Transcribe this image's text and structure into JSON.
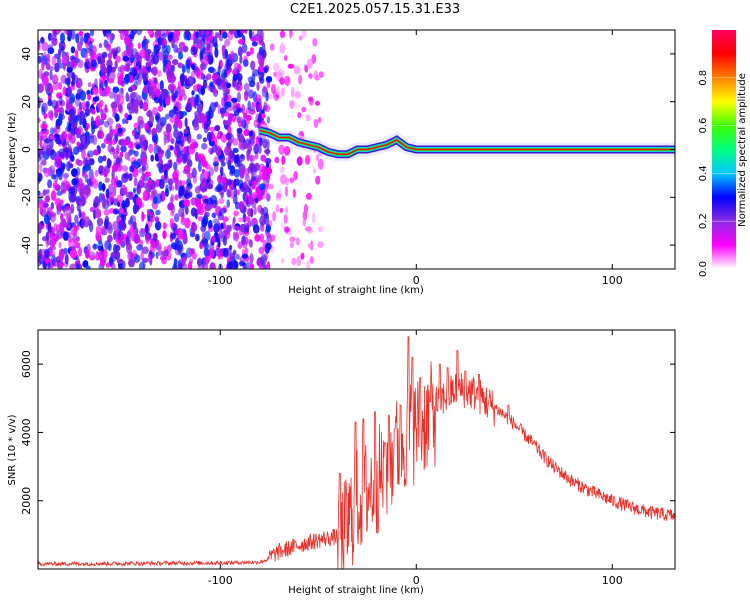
{
  "title": "C2E1.2025.057.15.31.E33",
  "charts": [
    {
      "type": "heatmap",
      "xlabel": "Height of straight line (km)",
      "ylabel": "Frequency (Hz)",
      "xlim": [
        -193,
        132
      ],
      "ylim": [
        -50,
        50
      ],
      "xticks": [
        "-100",
        "0",
        "100"
      ],
      "xtick_values": [
        -100,
        0,
        100
      ],
      "yticks": [
        "-40",
        "-20",
        "0",
        "20",
        "40"
      ],
      "ytick_values": [
        -40,
        -20,
        0,
        20,
        40
      ],
      "grid": false,
      "colorbar": {
        "label": "Normalized spectral amplitude",
        "ticks": [
          "0.0",
          "0.2",
          "0.4",
          "0.6",
          "0.8"
        ],
        "tick_values": [
          0,
          0.2,
          0.4,
          0.6,
          0.8
        ],
        "range": [
          0,
          1
        ],
        "stops": [
          "#ffffff",
          "#ff00ff",
          "#8a2be2",
          "#0000ff",
          "#00c8ff",
          "#00ff80",
          "#40ff00",
          "#ffff00",
          "#ff8000",
          "#ff0000",
          "#ff0060"
        ]
      },
      "noise_region_km": [
        -193,
        -48
      ],
      "ridge": {
        "x": [
          -80,
          -75,
          -70,
          -65,
          -60,
          -55,
          -50,
          -45,
          -40,
          -35,
          -30,
          -25,
          -20,
          -15,
          -10,
          -5,
          0,
          10,
          30,
          60,
          100,
          132
        ],
        "y": [
          8,
          7,
          5,
          5,
          3,
          2,
          1,
          -1,
          -2,
          -2,
          0,
          0,
          1,
          2,
          4,
          1,
          0,
          0,
          0,
          0,
          0,
          0
        ]
      }
    },
    {
      "type": "line",
      "xlabel": "Height of straight line (km)",
      "ylabel": "SNR (10 * v/v)",
      "xlim": [
        -193,
        132
      ],
      "ylim": [
        0,
        7000
      ],
      "xticks": [
        "-100",
        "0",
        "100"
      ],
      "xtick_values": [
        -100,
        0,
        100
      ],
      "yticks": [
        "2000",
        "4000",
        "6000"
      ],
      "ytick_values": [
        2000,
        4000,
        6000
      ],
      "grid": false,
      "series": [
        {
          "color": "#e8302a",
          "envelope": {
            "x": [
              -193,
              -150,
              -100,
              -80,
              -75,
              -70,
              -60,
              -50,
              -40,
              -35,
              -30,
              -25,
              -20,
              -15,
              -10,
              -5,
              0,
              5,
              10,
              15,
              20,
              25,
              30,
              35,
              40,
              45,
              50,
              55,
              60,
              65,
              70,
              80,
              90,
              100,
              110,
              120,
              132
            ],
            "y": [
              150,
              160,
              180,
              200,
              300,
              450,
              650,
              800,
              900,
              1600,
              2300,
              2600,
              2900,
              3300,
              3800,
              4200,
              4400,
              4700,
              4900,
              5100,
              5300,
              5300,
              5200,
              5000,
              4750,
              4500,
              4250,
              3950,
              3650,
              3300,
              3000,
              2550,
              2250,
              2000,
              1800,
              1650,
              1550
            ]
          },
          "spikes": {
            "x": [
              -39,
              -31,
              -27,
              -21,
              -16,
              -14,
              -11,
              -8,
              -4,
              -2,
              2,
              7,
              12,
              16,
              21,
              25,
              32,
              47
            ],
            "y": [
              2800,
              4300,
              4400,
              4600,
              3700,
              4500,
              4100,
              4800,
              6800,
              6200,
              5600,
              4900,
              6000,
              5900,
              6400,
              5800,
              5700,
              4800
            ]
          }
        }
      ]
    }
  ]
}
